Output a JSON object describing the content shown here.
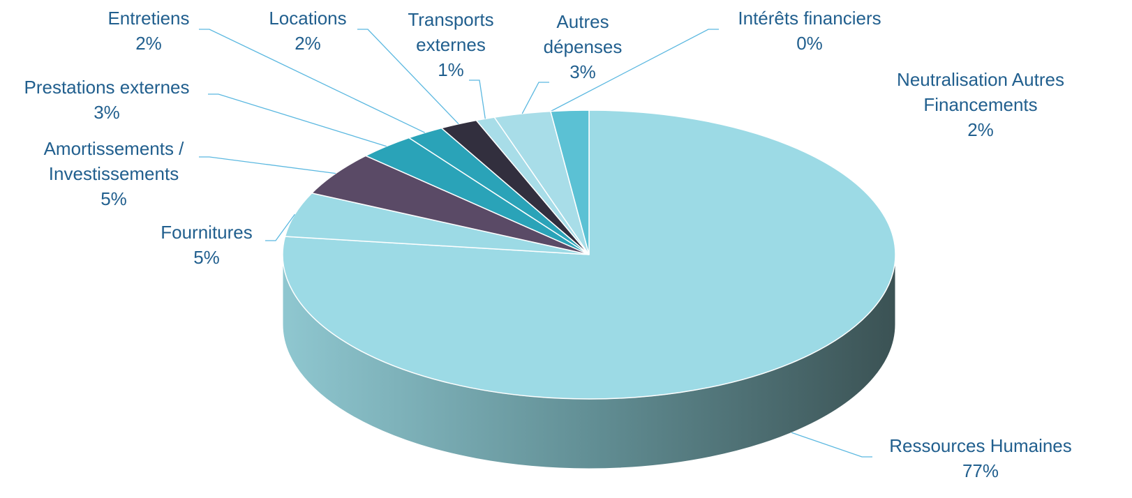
{
  "chart_data": {
    "type": "pie",
    "categories": [
      "Ressources Humaines",
      "Fournitures",
      "Amortissements / Investissements",
      "Prestations externes",
      "Entretiens",
      "Locations",
      "Transports externes",
      "Autres dépenses",
      "Intérêts financiers",
      "Neutralisation Autres Financements"
    ],
    "values": [
      77,
      5,
      5,
      3,
      2,
      2,
      1,
      3,
      0,
      2
    ],
    "value_labels": [
      "77%",
      "5%",
      "5%",
      "3%",
      "2%",
      "2%",
      "1%",
      "3%",
      "0%",
      "2%"
    ],
    "colors": [
      "#9cdae5",
      "#9cdae5",
      "#5a4a66",
      "#2aa3b8",
      "#2aa3b8",
      "#322f3e",
      "#a8dde8",
      "#a8dde8",
      "#7a6a8e",
      "#5bc1d4"
    ]
  }
}
